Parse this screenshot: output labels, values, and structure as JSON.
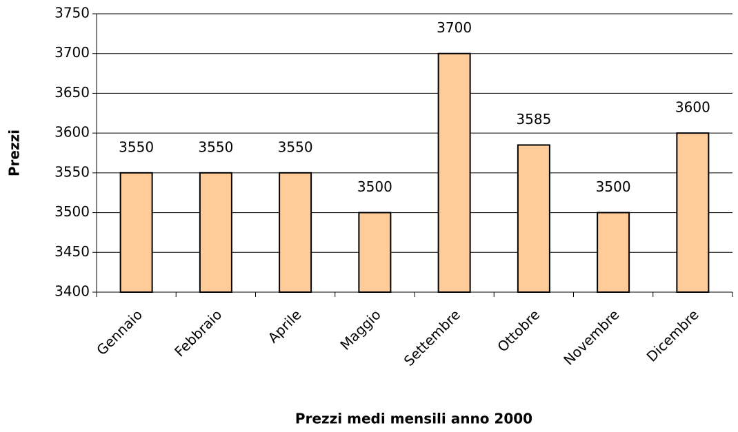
{
  "chart_data": {
    "type": "bar",
    "x_label": "Prezzi medi mensili anno 2000",
    "y_label": "Prezzi",
    "categories": [
      "Gennaio",
      "Febbraio",
      "Aprile",
      "Maggio",
      "Settembre",
      "Ottobre",
      "Novembre",
      "Dicembre"
    ],
    "values": [
      3550,
      3550,
      3550,
      3500,
      3700,
      3585,
      3500,
      3600
    ],
    "color": "#ffcc99",
    "ylim": [
      3400,
      3750
    ],
    "yticks": [
      3400,
      3450,
      3500,
      3550,
      3600,
      3650,
      3700,
      3750
    ],
    "grid": true
  }
}
